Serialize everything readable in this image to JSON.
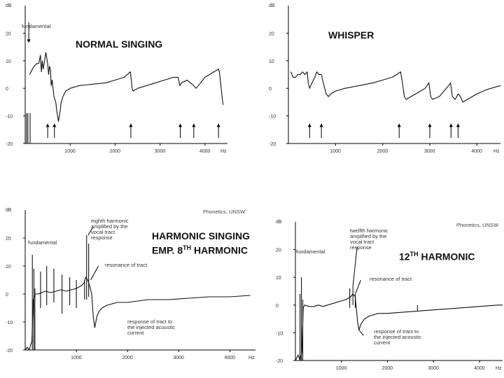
{
  "chart_data": [
    {
      "id": "normal",
      "type": "line",
      "title": "NORMAL SINGING",
      "ylabel": "dB",
      "xunit": "Hz",
      "xlim": [
        0,
        4500
      ],
      "ylim": [
        -20,
        30
      ],
      "xticks": [
        "1000",
        "2000",
        "3000",
        "4000"
      ],
      "yticks": [
        "20",
        "10",
        "0",
        "-10",
        "-20"
      ],
      "annotations": [
        {
          "text": "fundamental"
        }
      ],
      "arrows_hz": [
        500,
        650,
        2350,
        3450,
        3750,
        4300
      ],
      "spikes_hz": [
        30,
        60,
        110
      ],
      "series": [
        {
          "x": [
            100,
            130,
            160,
            200,
            260,
            300,
            340,
            360,
            380,
            400,
            420,
            460,
            500,
            520,
            540,
            560,
            580,
            600,
            640,
            680,
            700,
            740,
            780,
            800,
            840,
            900,
            1000,
            1200,
            1500,
            1800,
            2000,
            2200,
            2340,
            2380,
            2400,
            2500,
            2700,
            2900,
            3100,
            3300,
            3400,
            3440,
            3480,
            3600,
            3750,
            3800,
            3850,
            3900,
            4000,
            4100,
            4200,
            4300,
            4320,
            4340,
            4360,
            4380,
            4400
          ],
          "y": [
            5,
            6,
            7,
            8,
            9,
            9,
            12,
            6,
            10,
            7,
            9,
            13,
            9,
            5,
            8,
            7,
            1,
            3,
            -3,
            -5,
            -8,
            -12,
            -8,
            -5,
            -3,
            -1,
            0,
            1,
            1.5,
            2,
            3,
            4,
            6,
            0,
            -1,
            0,
            1,
            2,
            3,
            4,
            4,
            1,
            2,
            3,
            1,
            0,
            1,
            2,
            4,
            5,
            6,
            7,
            6,
            3,
            0,
            -3,
            -6
          ]
        }
      ]
    },
    {
      "id": "whisper",
      "type": "line",
      "title": "WHISPER",
      "ylabel": "dB",
      "xunit": "Hz",
      "xlim": [
        0,
        4500
      ],
      "ylim": [
        -20,
        30
      ],
      "xticks": [
        "1000",
        "2000",
        "3000",
        "4000"
      ],
      "yticks": [
        "20",
        "10",
        "0",
        "-10",
        "-20"
      ],
      "arrows_hz": [
        450,
        700,
        2350,
        3000,
        3450,
        3600
      ],
      "series": [
        {
          "x": [
            50,
            100,
            150,
            200,
            250,
            300,
            350,
            400,
            420,
            450,
            500,
            560,
            600,
            650,
            700,
            740,
            800,
            850,
            900,
            1000,
            1200,
            1500,
            1800,
            2000,
            2200,
            2300,
            2380,
            2420,
            2460,
            2500,
            2600,
            2700,
            2800,
            2900,
            2980,
            3020,
            3060,
            3200,
            3300,
            3400,
            3440,
            3480,
            3540,
            3600,
            3650,
            3700,
            3800,
            4000,
            4200,
            4400,
            4500
          ],
          "y": [
            6,
            4,
            4,
            5,
            5,
            6,
            5,
            6,
            2,
            0,
            2,
            4,
            6,
            5,
            5,
            2,
            -2,
            -3,
            -2,
            -1,
            0,
            1,
            2,
            3,
            4,
            5,
            6,
            2,
            -3,
            -4,
            -3,
            -2,
            -1,
            0,
            2,
            -3,
            -4,
            -3,
            -1,
            1,
            2,
            -3,
            -4,
            -2,
            -3,
            -5,
            -4,
            -2,
            -0.5,
            0.5,
            1
          ]
        }
      ]
    },
    {
      "id": "harmonic8",
      "type": "line",
      "title": "HARMONIC SINGING",
      "title2_prefix": "EMP. 8",
      "title2_sup": "TH",
      "title2_suffix": " HARMONIC",
      "source": "Phonetics, UNSW",
      "ylabel": "dB",
      "xunit": "Hz",
      "xlim": [
        0,
        4500
      ],
      "ylim": [
        -20,
        30
      ],
      "xticks": [
        "1000",
        "2000",
        "3000",
        "4000"
      ],
      "yticks": [
        "20",
        "10",
        "0",
        "-10",
        "-20"
      ],
      "annotations": [
        {
          "text": "fundamental"
        },
        {
          "text": "eighth harmonic\namplified by the\nvocal tract\nresponse"
        },
        {
          "text": "resonance of tract"
        },
        {
          "text": "response of tract to\nthe injected acoustic\ncurrent"
        }
      ],
      "spikes": [
        [
          140,
          -20,
          14
        ],
        [
          170,
          -20,
          9
        ],
        [
          190,
          -20,
          2
        ],
        [
          300,
          -5,
          8
        ],
        [
          420,
          -4,
          10
        ],
        [
          560,
          -3,
          9
        ],
        [
          720,
          -7,
          7
        ],
        [
          870,
          -4,
          6
        ],
        [
          1000,
          -5,
          5
        ],
        [
          1160,
          -2,
          5
        ],
        [
          1200,
          -2,
          21
        ],
        [
          1240,
          -1,
          18
        ]
      ],
      "series": [
        {
          "x": [
            0,
            40,
            80,
            110,
            130,
            160,
            200,
            260,
            320,
            400,
            500,
            600,
            700,
            800,
            900,
            1000,
            1100,
            1150,
            1180,
            1220,
            1260,
            1300,
            1330,
            1360,
            1400,
            1450,
            1500,
            1600,
            1800,
            2000,
            2400,
            2800,
            3200,
            3600,
            4000,
            4400
          ],
          "y": [
            -20,
            -19,
            -20,
            -18,
            -17,
            -2,
            0,
            0,
            0.5,
            1,
            0.5,
            1,
            1.5,
            1,
            1.5,
            2,
            3,
            4,
            6,
            5,
            3,
            0,
            -8,
            -12,
            -8,
            -6,
            -5,
            -4,
            -3,
            -3,
            -2,
            -2,
            -1.5,
            -1,
            -1,
            -0.5
          ]
        }
      ]
    },
    {
      "id": "harmonic12",
      "type": "line",
      "title": "12",
      "title_sup": "TH",
      "title_suffix": " HARMONIC",
      "source": "Phonetics, UNSW",
      "ylabel": "dB",
      "xunit": "Hz",
      "xlim": [
        0,
        4500
      ],
      "ylim": [
        -20,
        30
      ],
      "xticks": [
        "1000",
        "2000",
        "3000",
        "4000"
      ],
      "yticks": [
        "20",
        "10",
        "0",
        "-10",
        "-20"
      ],
      "annotations": [
        {
          "text": "fundamental"
        },
        {
          "text": "twelfth harmonic\namplified by the\nvocal tract\nresponse"
        },
        {
          "text": "resonance of tract"
        },
        {
          "text": "response of tract to\nthe injected acoustic\ncurrent"
        }
      ],
      "spikes": [
        [
          100,
          -20,
          4
        ],
        [
          130,
          -20,
          10
        ],
        [
          160,
          -20,
          2
        ],
        [
          1180,
          -1,
          6
        ],
        [
          1250,
          0,
          7
        ],
        [
          1300,
          -1,
          4
        ],
        [
          2650,
          -2,
          0
        ]
      ],
      "series": [
        {
          "x": [
            0,
            60,
            100,
            140,
            170,
            200,
            300,
            400,
            500,
            600,
            700,
            800,
            900,
            1000,
            1100,
            1200,
            1250,
            1300,
            1350,
            1380,
            1420,
            1460,
            1500,
            1600,
            1800,
            2000,
            2400,
            2800,
            3200,
            3600,
            4000,
            4400,
            4500
          ],
          "y": [
            -20,
            -18,
            -20,
            -17,
            -1,
            0,
            -0.5,
            -0.5,
            0,
            -0.5,
            0,
            0.5,
            1,
            1.5,
            2,
            3,
            4,
            3,
            -6,
            -9,
            -7,
            -6,
            -5,
            -4,
            -3,
            -3,
            -2.5,
            -2,
            -1.5,
            -1,
            -0.5,
            0,
            0
          ]
        }
      ]
    }
  ]
}
